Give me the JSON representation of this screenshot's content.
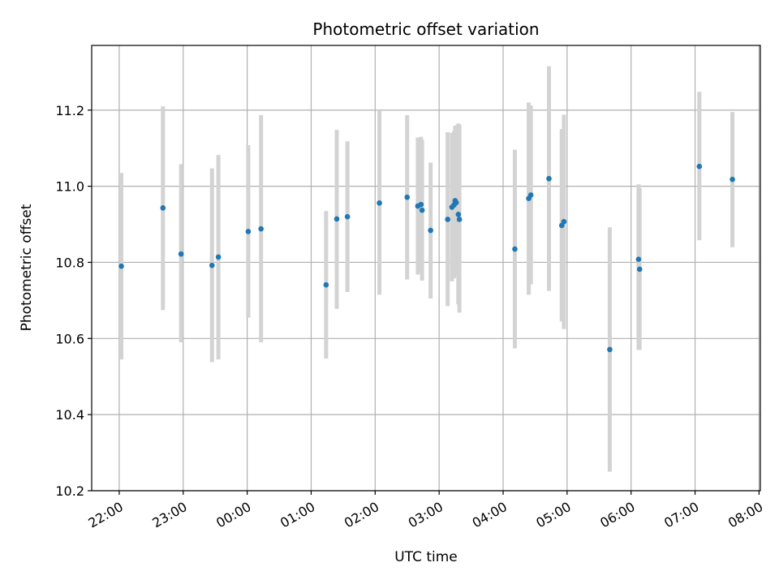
{
  "chart_data": {
    "type": "scatter",
    "title": "Photometric offset variation",
    "xlabel": "UTC time",
    "ylabel": "Photometric offset",
    "x_domain_hours": [
      -2.43,
      8.02
    ],
    "ylim": [
      10.2,
      11.37
    ],
    "grid": true,
    "colors": {
      "points": "#1f77b4",
      "errorbars": "#d3d3d3",
      "grid": "#b0b0b0"
    },
    "x_ticks": [
      {
        "value": -2,
        "label": "22:00"
      },
      {
        "value": -1,
        "label": "23:00"
      },
      {
        "value": 0,
        "label": "00:00"
      },
      {
        "value": 1,
        "label": "01:00"
      },
      {
        "value": 2,
        "label": "02:00"
      },
      {
        "value": 3,
        "label": "03:00"
      },
      {
        "value": 4,
        "label": "04:00"
      },
      {
        "value": 5,
        "label": "05:00"
      },
      {
        "value": 6,
        "label": "06:00"
      },
      {
        "value": 7,
        "label": "07:00"
      },
      {
        "value": 8,
        "label": "08:00"
      }
    ],
    "y_ticks": [
      {
        "value": 10.2,
        "label": "10.2"
      },
      {
        "value": 10.4,
        "label": "10.4"
      },
      {
        "value": 10.6,
        "label": "10.6"
      },
      {
        "value": 10.8,
        "label": "10.8"
      },
      {
        "value": 11.0,
        "label": "11.0"
      },
      {
        "value": 11.2,
        "label": "11.2"
      }
    ],
    "points": [
      {
        "time": "22:02",
        "y": 10.79,
        "low": 10.545,
        "high": 11.035
      },
      {
        "time": "22:41",
        "y": 10.943,
        "low": 10.675,
        "high": 11.21
      },
      {
        "time": "22:58",
        "y": 10.822,
        "low": 10.59,
        "high": 11.058
      },
      {
        "time": "23:27",
        "y": 10.792,
        "low": 10.538,
        "high": 11.047
      },
      {
        "time": "23:33",
        "y": 10.814,
        "low": 10.545,
        "high": 11.082
      },
      {
        "time": "00:01",
        "y": 10.881,
        "low": 10.655,
        "high": 11.108
      },
      {
        "time": "00:13",
        "y": 10.888,
        "low": 10.59,
        "high": 11.187
      },
      {
        "time": "01:14",
        "y": 10.741,
        "low": 10.547,
        "high": 10.935
      },
      {
        "time": "01:24",
        "y": 10.914,
        "low": 10.678,
        "high": 11.148
      },
      {
        "time": "01:34",
        "y": 10.92,
        "low": 10.722,
        "high": 11.118
      },
      {
        "time": "02:04",
        "y": 10.956,
        "low": 10.715,
        "high": 11.198
      },
      {
        "time": "02:30",
        "y": 10.971,
        "low": 10.755,
        "high": 11.187
      },
      {
        "time": "02:40",
        "y": 10.948,
        "low": 10.768,
        "high": 11.128
      },
      {
        "time": "02:43",
        "y": 10.952,
        "low": 10.775,
        "high": 11.13
      },
      {
        "time": "02:44",
        "y": 10.937,
        "low": 10.752,
        "high": 11.122
      },
      {
        "time": "02:52",
        "y": 10.884,
        "low": 10.705,
        "high": 11.062
      },
      {
        "time": "03:08",
        "y": 10.913,
        "low": 10.685,
        "high": 11.142
      },
      {
        "time": "03:12",
        "y": 10.945,
        "low": 10.75,
        "high": 11.14
      },
      {
        "time": "03:14",
        "y": 10.951,
        "low": 10.758,
        "high": 11.145
      },
      {
        "time": "03:15",
        "y": 10.962,
        "low": 10.765,
        "high": 11.158
      },
      {
        "time": "03:16",
        "y": 10.957,
        "low": 10.772,
        "high": 11.16
      },
      {
        "time": "03:18",
        "y": 10.926,
        "low": 10.69,
        "high": 11.165
      },
      {
        "time": "03:19",
        "y": 10.913,
        "low": 10.668,
        "high": 11.162
      },
      {
        "time": "04:11",
        "y": 10.835,
        "low": 10.574,
        "high": 11.096
      },
      {
        "time": "04:24",
        "y": 10.968,
        "low": 10.715,
        "high": 11.22
      },
      {
        "time": "04:26",
        "y": 10.977,
        "low": 10.742,
        "high": 11.212
      },
      {
        "time": "04:43",
        "y": 11.02,
        "low": 10.725,
        "high": 11.315
      },
      {
        "time": "04:55",
        "y": 10.897,
        "low": 10.645,
        "high": 11.15
      },
      {
        "time": "04:57",
        "y": 10.907,
        "low": 10.625,
        "high": 11.188
      },
      {
        "time": "05:40",
        "y": 10.571,
        "low": 10.25,
        "high": 10.892
      },
      {
        "time": "06:07",
        "y": 10.808,
        "low": 10.57,
        "high": 11.005
      },
      {
        "time": "06:08",
        "y": 10.782,
        "low": 10.57,
        "high": 10.995
      },
      {
        "time": "07:04",
        "y": 11.052,
        "low": 10.858,
        "high": 11.248
      },
      {
        "time": "07:35",
        "y": 11.018,
        "low": 10.84,
        "high": 11.195
      }
    ]
  }
}
